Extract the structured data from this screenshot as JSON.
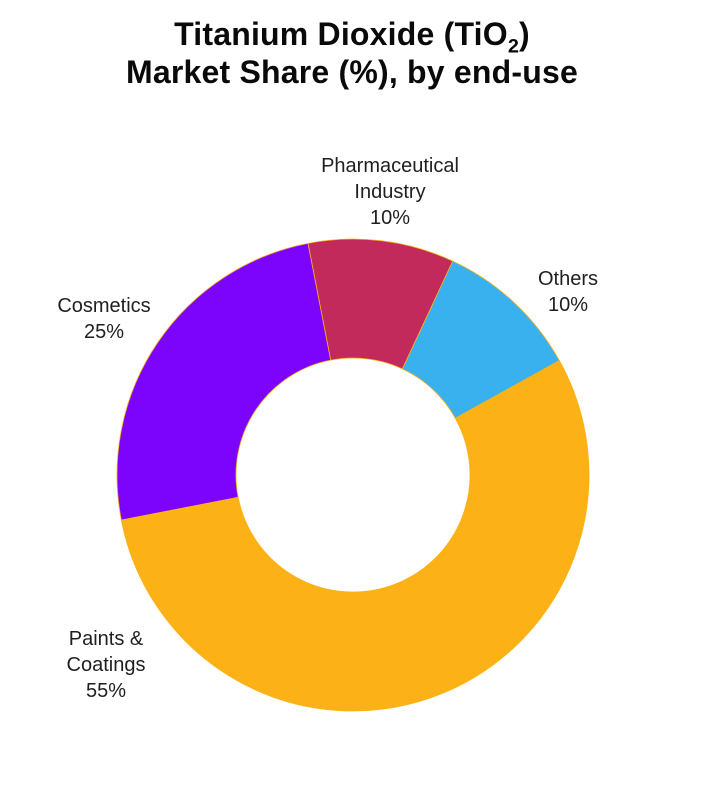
{
  "title": {
    "line1_pre": "Titanium Dioxide (TiO",
    "line1_sub": "2",
    "line1_post": ")",
    "line2": "Market Share (%), by end-use"
  },
  "chart_data": {
    "type": "pie",
    "variant": "donut",
    "title": "Titanium Dioxide (TiO2) Market Share (%), by end-use",
    "labels": [
      "Pharmaceutical Industry",
      "Others",
      "Paints & Coatings",
      "Cosmetics"
    ],
    "values": [
      10,
      10,
      55,
      25
    ],
    "unit": "%",
    "colors": [
      "#c22a5b",
      "#39b1ee",
      "#fcb216",
      "#7d04fc"
    ],
    "slice_border_color": "#fcb216",
    "hole_ratio": 0.49,
    "start_angle_deg": -11,
    "direction": "clockwise",
    "label_position": "outside",
    "background": "#ffffff",
    "legend": "none"
  }
}
